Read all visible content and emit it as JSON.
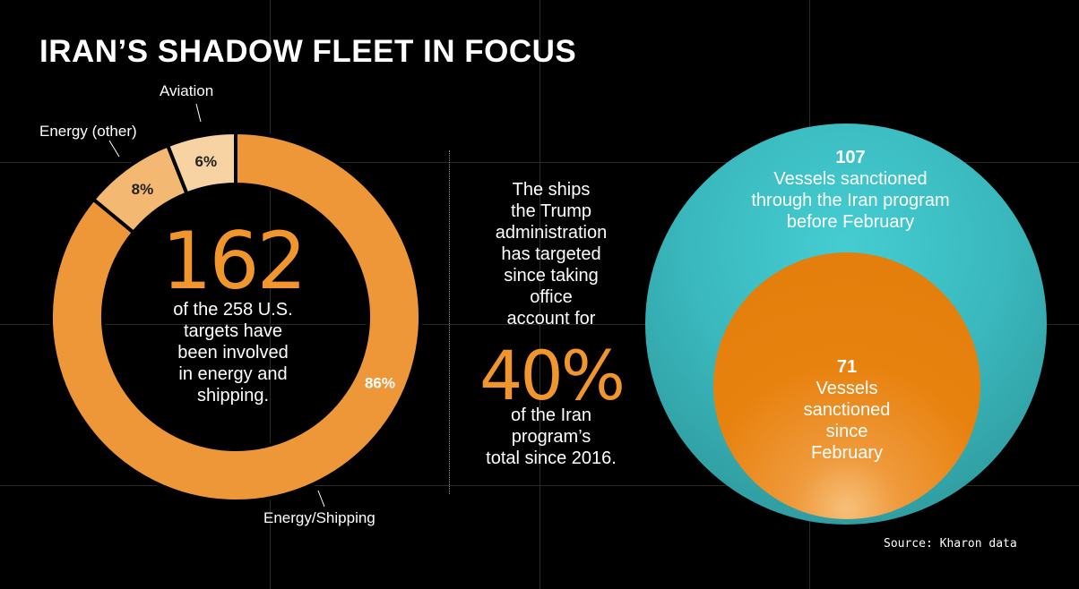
{
  "title": "IRAN’S SHADOW FLEET IN FOCUS",
  "chart_data": [
    {
      "type": "pie",
      "style": "donut",
      "categories": [
        "Energy/Shipping",
        "Energy (other)",
        "Aviation"
      ],
      "values": [
        86,
        8,
        6
      ],
      "value_labels": [
        "86%",
        "8%",
        "6%"
      ],
      "colors": [
        "#ee9738",
        "#f3b871",
        "#f7d3a3"
      ],
      "center": {
        "value": "162",
        "text": [
          "of the 258 U.S.",
          "targets have",
          "been involved",
          "in energy and",
          "shipping."
        ]
      }
    },
    {
      "type": "nested-circles",
      "values": [
        107,
        71
      ],
      "labels": [
        {
          "value": "107",
          "text": [
            "Vessels sanctioned",
            "through the Iran program",
            "before February"
          ]
        },
        {
          "value": "71",
          "text": [
            "Vessels",
            "sanctioned",
            "since",
            "February"
          ]
        }
      ],
      "colors": [
        "#3ab9be",
        "#e8820f"
      ]
    }
  ],
  "middle": {
    "lines_top": [
      "The ships",
      "the Trump",
      "administration",
      "has targeted",
      "since taking",
      "office",
      "account for"
    ],
    "big": "40%",
    "lines_bottom": [
      "of the Iran",
      "program’s",
      "total since 2016."
    ]
  },
  "source": "Source: Kharon data"
}
